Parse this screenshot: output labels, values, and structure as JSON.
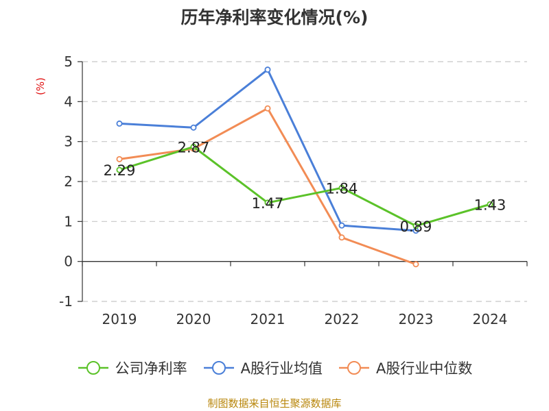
{
  "chart_data": {
    "type": "line",
    "title": "历年净利率变化情况(%)",
    "ylabel": "(%)",
    "categories": [
      "2019",
      "2020",
      "2021",
      "2022",
      "2023",
      "2024"
    ],
    "ylim": [
      -1,
      5
    ],
    "yticks": [
      -1,
      0,
      1,
      2,
      3,
      4,
      5
    ],
    "grid": true,
    "legend_position": "bottom",
    "series": [
      {
        "name": "公司净利率",
        "color": "#5bc229",
        "values": [
          2.29,
          2.87,
          1.47,
          1.84,
          0.89,
          1.43
        ],
        "labels": [
          "2.29",
          "2.87",
          "1.47",
          "1.84",
          "0.89",
          "1.43"
        ]
      },
      {
        "name": "A股行业均值",
        "color": "#4a7fd8",
        "values": [
          3.45,
          3.35,
          4.8,
          0.9,
          0.77,
          null
        ]
      },
      {
        "name": "A股行业中位数",
        "color": "#f28c55",
        "values": [
          2.56,
          2.82,
          3.83,
          0.6,
          -0.07,
          null
        ]
      }
    ]
  },
  "source": "制图数据来自恒生聚源数据库"
}
